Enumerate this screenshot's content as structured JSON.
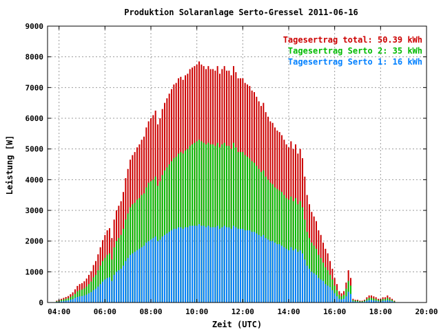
{
  "chart_data": {
    "type": "bar",
    "stacked": true,
    "title": "Produktion Solaranlage Serto-Gressel 2011-06-16",
    "xlabel": "Zeit (UTC)",
    "ylabel": "Leistung [W]",
    "xlim": [
      3.5,
      20.0
    ],
    "ylim": [
      0,
      9000
    ],
    "xticks": [
      {
        "v": 4,
        "label": "04:00"
      },
      {
        "v": 6,
        "label": "06:00"
      },
      {
        "v": 8,
        "label": "08:00"
      },
      {
        "v": 10,
        "label": "10:00"
      },
      {
        "v": 12,
        "label": "12:00"
      },
      {
        "v": 14,
        "label": "14:00"
      },
      {
        "v": 16,
        "label": "16:00"
      },
      {
        "v": 18,
        "label": "18:00"
      },
      {
        "v": 20,
        "label": "20:00"
      }
    ],
    "yticks": [
      0,
      1000,
      2000,
      3000,
      4000,
      5000,
      6000,
      7000,
      8000,
      9000
    ],
    "grid": true,
    "legend_position": "top-right",
    "legend": [
      {
        "label": "Tagesertrag total: 50.39 kWh",
        "color": "#cc0000"
      },
      {
        "label": "Tagesertrag Serto 2: 35 kWh",
        "color": "#00bb00"
      },
      {
        "label": "Tagesertrag Serto 1: 16 kWh",
        "color": "#0080ff"
      }
    ],
    "colors": {
      "total": "#cc0000",
      "serto2": "#00bb00",
      "serto1": "#0080ff"
    },
    "x": [
      3.9,
      4.0,
      4.1,
      4.2,
      4.3,
      4.4,
      4.5,
      4.6,
      4.7,
      4.8,
      4.9,
      5.0,
      5.1,
      5.2,
      5.3,
      5.4,
      5.5,
      5.6,
      5.7,
      5.8,
      5.9,
      6.0,
      6.1,
      6.2,
      6.3,
      6.4,
      6.5,
      6.6,
      6.7,
      6.8,
      6.9,
      7.0,
      7.1,
      7.2,
      7.3,
      7.4,
      7.5,
      7.6,
      7.7,
      7.8,
      7.9,
      8.0,
      8.1,
      8.2,
      8.3,
      8.4,
      8.5,
      8.6,
      8.7,
      8.8,
      8.9,
      9.0,
      9.1,
      9.2,
      9.3,
      9.4,
      9.5,
      9.6,
      9.7,
      9.8,
      9.9,
      10.0,
      10.1,
      10.2,
      10.3,
      10.4,
      10.5,
      10.6,
      10.7,
      10.8,
      10.9,
      11.0,
      11.1,
      11.2,
      11.3,
      11.4,
      11.5,
      11.6,
      11.7,
      11.8,
      11.9,
      12.0,
      12.1,
      12.2,
      12.3,
      12.4,
      12.5,
      12.6,
      12.7,
      12.8,
      12.9,
      13.0,
      13.1,
      13.2,
      13.3,
      13.4,
      13.5,
      13.6,
      13.7,
      13.8,
      13.9,
      14.0,
      14.1,
      14.2,
      14.3,
      14.4,
      14.5,
      14.6,
      14.7,
      14.8,
      14.9,
      15.0,
      15.1,
      15.2,
      15.3,
      15.4,
      15.5,
      15.6,
      15.7,
      15.8,
      15.9,
      16.0,
      16.1,
      16.2,
      16.3,
      16.4,
      16.5,
      16.6,
      16.7,
      16.8,
      16.9,
      17.0,
      17.1,
      17.2,
      17.3,
      17.4,
      17.5,
      17.6,
      17.7,
      17.8,
      17.9,
      18.0,
      18.1,
      18.2,
      18.3,
      18.4,
      18.5,
      18.6,
      18.7,
      18.8
    ],
    "serto1": [
      20,
      30,
      40,
      50,
      60,
      70,
      90,
      110,
      150,
      180,
      200,
      210,
      230,
      260,
      300,
      340,
      400,
      450,
      520,
      600,
      680,
      750,
      800,
      820,
      700,
      900,
      1000,
      1050,
      1100,
      1200,
      1350,
      1450,
      1550,
      1600,
      1650,
      1700,
      1750,
      1800,
      1850,
      1950,
      2000,
      2050,
      2100,
      2150,
      2000,
      2050,
      2150,
      2200,
      2250,
      2300,
      2350,
      2400,
      2400,
      2450,
      2450,
      2400,
      2450,
      2450,
      2500,
      2500,
      2500,
      2500,
      2550,
      2500,
      2500,
      2450,
      2500,
      2450,
      2450,
      2450,
      2500,
      2400,
      2450,
      2500,
      2450,
      2450,
      2400,
      2500,
      2450,
      2400,
      2400,
      2400,
      2350,
      2350,
      2350,
      2300,
      2300,
      2250,
      2200,
      2150,
      2200,
      2100,
      2050,
      2000,
      2000,
      1950,
      1900,
      1900,
      1850,
      1800,
      1750,
      1700,
      1800,
      1700,
      1750,
      1650,
      1700,
      1600,
      1400,
      1200,
      1100,
      1000,
      950,
      900,
      800,
      750,
      700,
      600,
      550,
      500,
      400,
      300,
      200,
      120,
      100,
      120,
      200,
      350,
      280,
      40,
      30,
      30,
      20,
      20,
      30,
      60,
      80,
      80,
      70,
      60,
      40,
      40,
      60,
      60,
      80,
      60,
      40,
      20
    ],
    "serto2": [
      40,
      60,
      80,
      100,
      120,
      140,
      180,
      220,
      280,
      360,
      400,
      420,
      460,
      520,
      600,
      680,
      820,
      900,
      1050,
      1200,
      1350,
      1450,
      1550,
      1600,
      1400,
      1800,
      2000,
      2100,
      2200,
      2400,
      2700,
      2900,
      3100,
      3200,
      3250,
      3350,
      3400,
      3500,
      3550,
      3750,
      3900,
      3950,
      4000,
      4100,
      3800,
      3950,
      4150,
      4300,
      4400,
      4500,
      4600,
      4700,
      4750,
      4850,
      4900,
      4850,
      4950,
      5000,
      5100,
      5150,
      5200,
      5250,
      5300,
      5250,
      5200,
      5150,
      5200,
      5150,
      5150,
      5100,
      5200,
      5050,
      5150,
      5200,
      5100,
      5100,
      5000,
      5200,
      5050,
      4900,
      4900,
      4900,
      4800,
      4750,
      4700,
      4600,
      4550,
      4450,
      4350,
      4250,
      4300,
      4100,
      4000,
      3900,
      3850,
      3750,
      3700,
      3650,
      3600,
      3500,
      3400,
      3350,
      3450,
      3300,
      3400,
      3200,
      3300,
      3100,
      2700,
      2300,
      2100,
      1950,
      1850,
      1750,
      1550,
      1450,
      1300,
      1150,
      1050,
      900,
      750,
      550,
      400,
      250,
      200,
      250,
      450,
      700,
      550,
      80,
      60,
      60,
      40,
      40,
      60,
      110,
      150,
      150,
      130,
      110,
      80,
      80,
      110,
      110,
      150,
      110,
      80,
      40
    ],
    "total": [
      60,
      90,
      120,
      150,
      180,
      210,
      270,
      330,
      430,
      540,
      600,
      630,
      690,
      780,
      900,
      1020,
      1220,
      1350,
      1570,
      1800,
      2030,
      2200,
      2350,
      2420,
      2100,
      2700,
      3000,
      3150,
      3300,
      3600,
      4050,
      4350,
      4650,
      4800,
      4900,
      5050,
      5150,
      5300,
      5400,
      5700,
      5900,
      6000,
      6100,
      6250,
      5800,
      6000,
      6300,
      6500,
      6650,
      6800,
      6950,
      7100,
      7150,
      7300,
      7350,
      7250,
      7400,
      7450,
      7600,
      7650,
      7700,
      7750,
      7850,
      7750,
      7700,
      7600,
      7700,
      7600,
      7600,
      7550,
      7700,
      7450,
      7600,
      7700,
      7550,
      7550,
      7400,
      7700,
      7500,
      7300,
      7300,
      7300,
      7150,
      7100,
      7050,
      6900,
      6850,
      6700,
      6550,
      6400,
      6500,
      6200,
      6050,
      5900,
      5850,
      5700,
      5600,
      5550,
      5450,
      5300,
      5150,
      5050,
      5250,
      5000,
      5150,
      4850,
      5000,
      4700,
      4100,
      3500,
      3200,
      2950,
      2800,
      2650,
      2350,
      2200,
      1950,
      1750,
      1600,
      1350,
      1100,
      800,
      600,
      370,
      300,
      370,
      650,
      1050,
      800,
      120,
      90,
      90,
      60,
      60,
      90,
      170,
      230,
      230,
      200,
      170,
      120,
      120,
      170,
      170,
      230,
      170,
      120,
      60
    ],
    "_note_rows": "values in W per sample; per-sample spikes smoothed/approximated"
  }
}
